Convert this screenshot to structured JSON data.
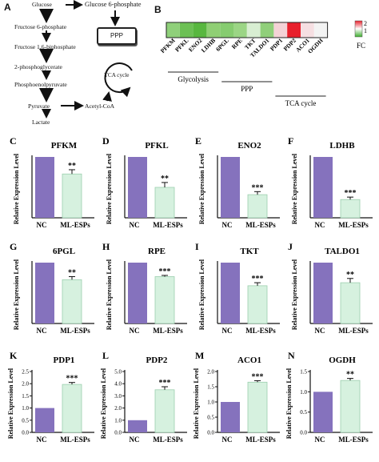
{
  "panel_a": {
    "label": "A",
    "glucose": "Glucose",
    "g6p": "Glucose 6-phosphate",
    "ppp": "PPP",
    "f6p": "Fructose 6-phosphate",
    "f16bp": "Fructose 1,6-biphosphate",
    "pg2": "2-phosphoglycerate",
    "pep": "Phosphoenolpyruvate",
    "tca": "TCA cycle",
    "pyruvate": "Pyruvate",
    "acetylcoa": "Acetyl-CoA",
    "lactate": "Lactate"
  },
  "panel_b": {
    "label": "B",
    "genes": [
      "PFKM",
      "PFKL",
      "ENO2",
      "LDHB",
      "6PGL",
      "RPE",
      "TKT",
      "TALDO1",
      "PDP1",
      "PDP2",
      "ACO1",
      "OGDH"
    ],
    "fc_values": [
      0.7,
      0.5,
      0.38,
      0.3,
      0.72,
      0.77,
      0.62,
      0.67,
      1.97,
      3.5,
      1.65,
      1.28
    ],
    "cell_colors": [
      "#8fd07a",
      "#6cc054",
      "#58b73f",
      "#8fcf74",
      "#86cc70",
      "#9bd585",
      "#d8eed2",
      "#90cf7a",
      "#f4d2d6",
      "#e8202c",
      "#f6dfe2",
      "#f3f3f3"
    ],
    "groups": [
      "Glycolysis",
      "PPP",
      "TCA cycle"
    ],
    "legend_title": "FC",
    "legend_ticks": [
      "2",
      "1"
    ],
    "legend_colors": [
      "#e8202c",
      "#ffffff",
      "#3cae2c"
    ]
  },
  "bar_style": {
    "nc_color": "#8572bd",
    "ml_color": "#d6f1df",
    "ml_stroke": "#9ccfae"
  },
  "chart_data": [
    {
      "type": "bar",
      "panel": "C",
      "title": "PFKM",
      "categories": [
        "NC",
        "ML-ESPs"
      ],
      "values": [
        1.0,
        0.72
      ],
      "errors": [
        0,
        0.07
      ],
      "sig": "**",
      "ylabel": "Relative Expression Level"
    },
    {
      "type": "bar",
      "panel": "D",
      "title": "PFKL",
      "categories": [
        "NC",
        "ML-ESPs"
      ],
      "values": [
        1.0,
        0.5
      ],
      "errors": [
        0,
        0.08
      ],
      "sig": "**",
      "ylabel": "Relative Expression Level"
    },
    {
      "type": "bar",
      "panel": "E",
      "title": "ENO2",
      "categories": [
        "NC",
        "ML-ESPs"
      ],
      "values": [
        1.0,
        0.38
      ],
      "errors": [
        0,
        0.05
      ],
      "sig": "***",
      "ylabel": "Relative Expression Level"
    },
    {
      "type": "bar",
      "panel": "F",
      "title": "LDHB",
      "categories": [
        "NC",
        "ML-ESPs"
      ],
      "values": [
        1.0,
        0.3
      ],
      "errors": [
        0,
        0.04
      ],
      "sig": "***",
      "ylabel": "Relative Expression Level"
    },
    {
      "type": "bar",
      "panel": "G",
      "title": "6PGL",
      "categories": [
        "NC",
        "ML-ESPs"
      ],
      "values": [
        1.0,
        0.72
      ],
      "errors": [
        0,
        0.05
      ],
      "sig": "**",
      "ylabel": "Relative Expression Level"
    },
    {
      "type": "bar",
      "panel": "H",
      "title": "RPE",
      "categories": [
        "NC",
        "ML-ESPs"
      ],
      "values": [
        1.0,
        0.77
      ],
      "errors": [
        0,
        0.02
      ],
      "sig": "***",
      "ylabel": "Relative Expression Level"
    },
    {
      "type": "bar",
      "panel": "I",
      "title": "TKT",
      "categories": [
        "NC",
        "ML-ESPs"
      ],
      "values": [
        1.0,
        0.62
      ],
      "errors": [
        0,
        0.05
      ],
      "sig": "***",
      "ylabel": "Relative Expression Level"
    },
    {
      "type": "bar",
      "panel": "J",
      "title": "TALDO1",
      "categories": [
        "NC",
        "ML-ESPs"
      ],
      "values": [
        1.0,
        0.67
      ],
      "errors": [
        0,
        0.07
      ],
      "sig": "**",
      "ylabel": "Relative Expression Level"
    },
    {
      "type": "bar",
      "panel": "K",
      "title": "PDP1",
      "categories": [
        "NC",
        "ML-ESPs"
      ],
      "values": [
        1.0,
        1.97
      ],
      "errors": [
        0,
        0.08
      ],
      "sig": "***",
      "ylim": [
        0,
        2.5
      ],
      "yticks": [
        "0.0",
        "0.5",
        "1.0",
        "1.5",
        "2.0",
        "2.5"
      ],
      "ylabel": "Relative Expression Level"
    },
    {
      "type": "bar",
      "panel": "L",
      "title": "PDP2",
      "categories": [
        "NC",
        "ML-ESPs"
      ],
      "values": [
        1.0,
        3.5
      ],
      "errors": [
        0,
        0.25
      ],
      "sig": "***",
      "ylim": [
        0,
        5
      ],
      "yticks": [
        "0.0",
        "1.0",
        "2.0",
        "3.0",
        "4.0",
        "5.0"
      ],
      "ylabel": "Relative Expression Level"
    },
    {
      "type": "bar",
      "panel": "M",
      "title": "ACO1",
      "categories": [
        "NC",
        "ML-ESPs"
      ],
      "values": [
        1.0,
        1.65
      ],
      "errors": [
        0,
        0.05
      ],
      "sig": "***",
      "ylim": [
        0,
        2.0
      ],
      "yticks": [
        "0.0",
        "0.5",
        "1.0",
        "1.5",
        "2.0"
      ],
      "ylabel": "Relative Expression Level"
    },
    {
      "type": "bar",
      "panel": "N",
      "title": "OGDH",
      "categories": [
        "NC",
        "ML-ESPs"
      ],
      "values": [
        1.0,
        1.28
      ],
      "errors": [
        0,
        0.05
      ],
      "sig": "**",
      "ylim": [
        0,
        1.5
      ],
      "yticks": [
        "0.0",
        "0.5",
        "1.0",
        "1.5"
      ],
      "ylabel": "Relative Expression Level"
    }
  ]
}
